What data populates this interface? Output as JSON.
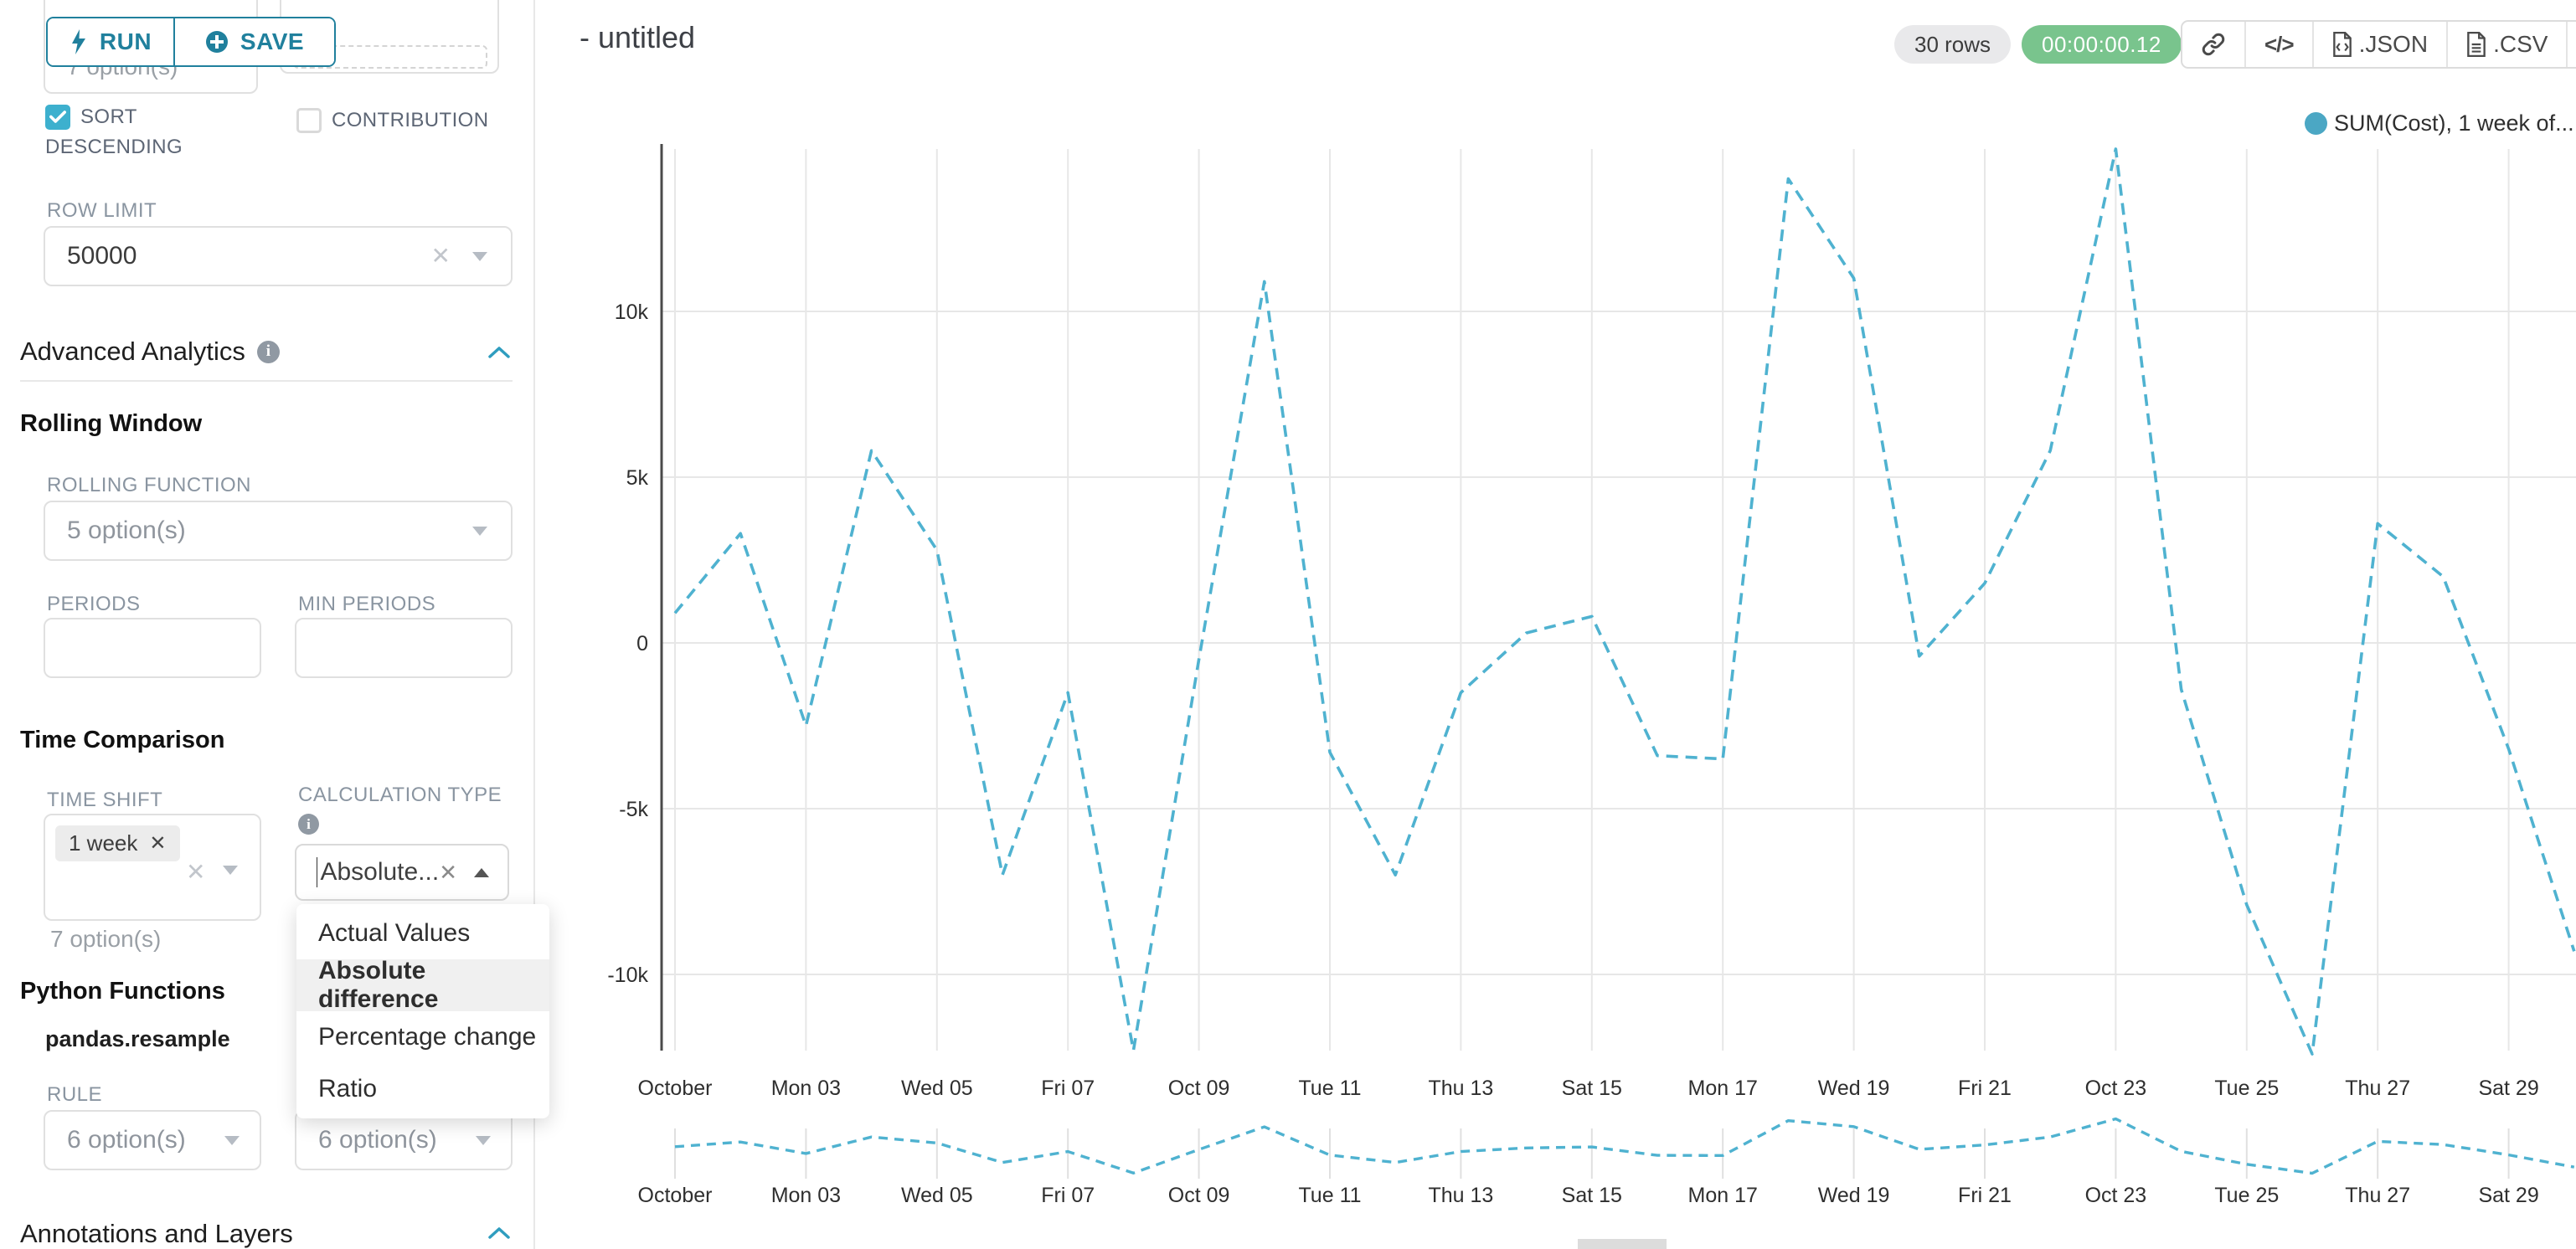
{
  "colors": {
    "primary_teal": "#20809d",
    "checkbox_teal": "#3db0ce",
    "chart_line": "#4fb2d0",
    "legend_dot": "#4ba7c4",
    "timer_green": "#79c48d",
    "grid": "#e7e7e7",
    "axis": "#4a4a4a"
  },
  "icons": {
    "run": "lightning-bolt",
    "save": "plus-circle",
    "info": "info-circle",
    "collapse": "chevron-up",
    "select_open": "caret-up",
    "select_closed": "caret-down",
    "clear": "x",
    "share": "link",
    "embed": "code",
    "export": "file",
    "more": "hamburger-menu"
  },
  "toolbar": {
    "run_label": "RUN",
    "save_label": "SAVE"
  },
  "header": {
    "title": "- untitled",
    "rows_badge": "30 rows",
    "timer": "00:00:00.12",
    "export_json_label": ".JSON",
    "export_csv_label": ".CSV"
  },
  "sidebar": {
    "top_left_select_placeholder": "7 option(s)",
    "sort_descending": {
      "label": "SORT DESCENDING",
      "checked": true
    },
    "contribution": {
      "label": "CONTRIBUTION",
      "checked": false
    },
    "row_limit": {
      "label": "ROW LIMIT",
      "value": "50000"
    },
    "advanced_analytics": {
      "title": "Advanced Analytics"
    },
    "rolling_window": {
      "title": "Rolling Window",
      "rolling_function_label": "ROLLING FUNCTION",
      "rolling_function_placeholder": "5 option(s)",
      "periods_label": "PERIODS",
      "min_periods_label": "MIN PERIODS"
    },
    "time_comparison": {
      "title": "Time Comparison",
      "time_shift_label": "TIME SHIFT",
      "time_shift_tag": "1 week",
      "time_shift_placeholder": "7 option(s)",
      "calculation_type_label": "CALCULATION TYPE",
      "calculation_type_value": "Absolute...",
      "options": [
        "Actual Values",
        "Absolute difference",
        "Percentage change",
        "Ratio"
      ],
      "selected_option": "Absolute difference"
    },
    "python_functions": {
      "title": "Python Functions",
      "subtitle": "pandas.resample",
      "rule_label": "RULE",
      "rule_placeholder": "6 option(s)",
      "method_placeholder": "6 option(s)"
    },
    "annotations": {
      "title": "Annotations and Layers"
    }
  },
  "legend": {
    "label": "SUM(Cost), 1 week of..."
  },
  "chart_data": {
    "type": "line",
    "title": "",
    "line_style": "dashed",
    "grid": true,
    "legend_position": "top-right",
    "legend": [
      "SUM(Cost), 1 week of..."
    ],
    "x_tick_labels": [
      "October",
      "Mon 03",
      "Wed 05",
      "Fri 07",
      "Oct 09",
      "Tue 11",
      "Thu 13",
      "Sat 15",
      "Mon 17",
      "Wed 19",
      "Fri 21",
      "Oct 23",
      "Tue 25",
      "Thu 27",
      "Sat 29"
    ],
    "y_ticks": [
      {
        "label": "10k",
        "value": 10000
      },
      {
        "label": "5k",
        "value": 5000
      },
      {
        "label": "0",
        "value": 0
      },
      {
        "label": "-5k",
        "value": -5000
      },
      {
        "label": "-10k",
        "value": -10000
      }
    ],
    "ylim": [
      -13000,
      15000
    ],
    "series": [
      {
        "name": "SUM(Cost), 1 week offset",
        "x": [
          "Oct 01",
          "Oct 02",
          "Oct 03",
          "Oct 04",
          "Oct 05",
          "Oct 06",
          "Oct 07",
          "Oct 08",
          "Oct 09",
          "Oct 10",
          "Oct 11",
          "Oct 12",
          "Oct 13",
          "Oct 14",
          "Oct 15",
          "Oct 16",
          "Oct 17",
          "Oct 18",
          "Oct 19",
          "Oct 20",
          "Oct 21",
          "Oct 22",
          "Oct 23",
          "Oct 24",
          "Oct 25",
          "Oct 26",
          "Oct 27",
          "Oct 28",
          "Oct 29",
          "Oct 30"
        ],
        "values": [
          900,
          3300,
          -2500,
          5800,
          2800,
          -7000,
          -1500,
          -12300,
          -500,
          10900,
          -3300,
          -7000,
          -1500,
          300,
          800,
          -3400,
          -3500,
          14000,
          11000,
          -400,
          1800,
          5800,
          14900,
          -1400,
          -7900,
          -12400,
          3600,
          2000,
          -3200,
          -9300
        ]
      }
    ],
    "has_preview_strip": true
  }
}
